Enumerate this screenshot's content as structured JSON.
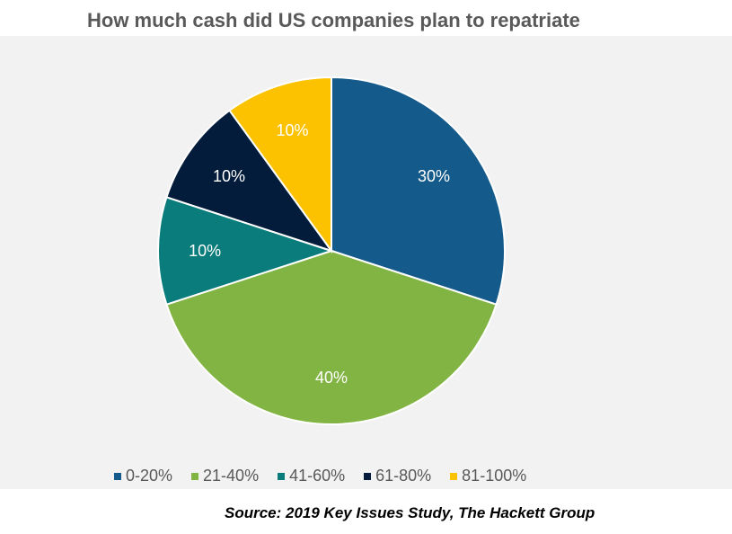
{
  "chart_data": {
    "type": "pie",
    "title": "How much cash did US companies plan to repatriate",
    "categories": [
      "0-20%",
      "21-40%",
      "41-60%",
      "61-80%",
      "81-100%"
    ],
    "values": [
      30,
      40,
      10,
      10,
      10
    ],
    "data_labels": [
      "30%",
      "40%",
      "10%",
      "10%",
      "10%"
    ],
    "colors": [
      "#145a8a",
      "#82b443",
      "#0a7c7b",
      "#031c3b",
      "#fcc200"
    ],
    "legend_position": "bottom",
    "start_angle": "12 o'clock",
    "direction": "clockwise"
  },
  "source": "Source: 2019 Key Issues Study, The Hackett Group"
}
